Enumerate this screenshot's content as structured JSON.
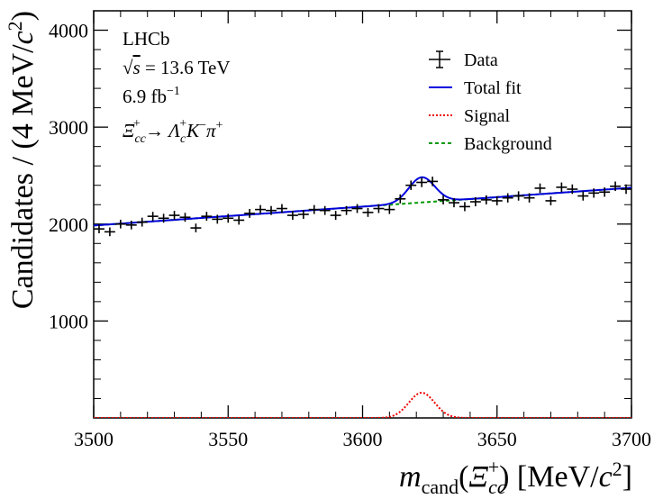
{
  "chart_data": {
    "type": "line",
    "xlabel_parts": {
      "m": "m",
      "sub": "cand",
      "open": "(",
      "xi": "Ξ",
      "xi_sub": "cc",
      "xi_sup": "+",
      "close_unit": ") [MeV/",
      "c": "c",
      "sq": "2",
      "end": "]"
    },
    "ylabel_parts": {
      "main": "Candidates / (4 MeV/",
      "c": "c",
      "sq": "2",
      "end": ")"
    },
    "xlim": [
      3500,
      3700
    ],
    "ylim": [
      0,
      4200
    ],
    "xticks": [
      3500,
      3550,
      3600,
      3650,
      3700
    ],
    "yticks": [
      1000,
      2000,
      3000,
      4000
    ],
    "grid": false,
    "legend_position": "top-right",
    "annotations": {
      "experiment": "LHCb",
      "energy_root": "√",
      "energy_s": "s",
      "energy_rest": " = 13.6 TeV",
      "lumi": "6.9 fb",
      "lumi_sup": "−1",
      "decay": {
        "xi": "Ξ",
        "xi_sub": "cc",
        "xi_sup": "+",
        "arrow": " → ",
        "lam": "Λ",
        "lam_sub": "c",
        "lam_sup": "+",
        "k": "K",
        "k_sup": "−",
        "pi": "π",
        "pi_sup": "+"
      }
    },
    "legend": [
      {
        "key": "data",
        "label": "Data",
        "color": "#000000"
      },
      {
        "key": "total",
        "label": "Total fit",
        "color": "#0000dd"
      },
      {
        "key": "signal",
        "label": "Signal",
        "color": "#ee0000"
      },
      {
        "key": "background",
        "label": "Background",
        "color": "#009900"
      }
    ],
    "bin_width": 4,
    "data": {
      "x": [
        3502,
        3506,
        3510,
        3514,
        3518,
        3522,
        3526,
        3530,
        3534,
        3538,
        3542,
        3546,
        3550,
        3554,
        3558,
        3562,
        3566,
        3570,
        3574,
        3578,
        3582,
        3586,
        3590,
        3594,
        3598,
        3602,
        3606,
        3610,
        3614,
        3618,
        3622,
        3626,
        3630,
        3634,
        3638,
        3642,
        3646,
        3650,
        3654,
        3658,
        3662,
        3666,
        3670,
        3674,
        3678,
        3682,
        3686,
        3690,
        3694,
        3698
      ],
      "y": [
        1950,
        1920,
        2000,
        1990,
        2020,
        2080,
        2060,
        2090,
        2070,
        1960,
        2080,
        2050,
        2060,
        2040,
        2110,
        2150,
        2140,
        2160,
        2090,
        2100,
        2150,
        2140,
        2090,
        2140,
        2160,
        2120,
        2160,
        2150,
        2260,
        2400,
        2430,
        2440,
        2250,
        2220,
        2180,
        2230,
        2250,
        2240,
        2270,
        2290,
        2270,
        2370,
        2240,
        2380,
        2360,
        2290,
        2320,
        2330,
        2390,
        2360
      ],
      "yerr": [
        45,
        45,
        45,
        45,
        46,
        46,
        46,
        46,
        46,
        45,
        46,
        46,
        46,
        46,
        46,
        46,
        46,
        46,
        46,
        46,
        46,
        46,
        46,
        46,
        46,
        46,
        46,
        46,
        47,
        49,
        49,
        49,
        47,
        47,
        47,
        47,
        47,
        47,
        48,
        48,
        48,
        49,
        47,
        49,
        49,
        48,
        48,
        48,
        49,
        49
      ]
    },
    "background_curve": {
      "x": [
        3500,
        3700
      ],
      "y": [
        1985,
        2375
      ]
    },
    "signal_peak": {
      "mean": 3622,
      "sigma": 4.8,
      "amplitude": 260
    }
  }
}
